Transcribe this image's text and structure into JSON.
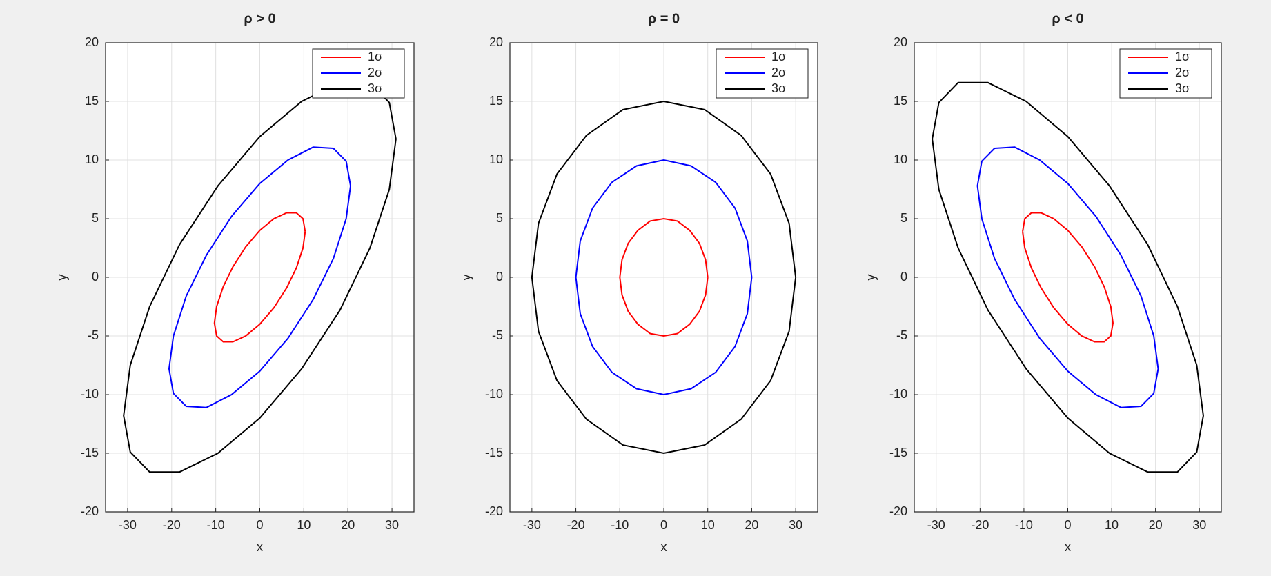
{
  "chart_data": [
    {
      "type": "line",
      "title": "ρ > 0",
      "xlabel": "x",
      "ylabel": "y",
      "xlim": [
        -35,
        35
      ],
      "ylim": [
        -20,
        20
      ],
      "xticks": [
        -30,
        -20,
        -10,
        0,
        10,
        20,
        30
      ],
      "yticks": [
        -20,
        -15,
        -10,
        -5,
        0,
        5,
        10,
        15,
        20
      ],
      "grid": true,
      "legend": "upper right",
      "series": [
        {
          "name": "1σ",
          "color": "#ff0000",
          "x": [
            10.3,
            9.8,
            8.3,
            6.1,
            3.2,
            0,
            -3.2,
            -6.1,
            -8.3,
            -9.8,
            -10.3,
            -9.8,
            -8.3,
            -6.1,
            -3.2,
            0,
            3.2,
            6.1,
            8.3,
            9.8,
            10.3
          ],
          "values": [
            3.9,
            5.0,
            5.5,
            5.5,
            5.0,
            4.0,
            2.6,
            0.9,
            -0.8,
            -2.5,
            -3.9,
            -5.0,
            -5.5,
            -5.5,
            -5.0,
            -4.0,
            -2.6,
            -0.9,
            0.8,
            2.5,
            3.9
          ]
        },
        {
          "name": "2σ",
          "color": "#0000ff",
          "x": [
            20.6,
            19.6,
            16.7,
            12.1,
            6.4,
            0,
            -6.4,
            -12.1,
            -16.7,
            -19.6,
            -20.6,
            -19.6,
            -16.7,
            -12.1,
            -6.4,
            0,
            6.4,
            12.1,
            16.7,
            19.6,
            20.6
          ],
          "values": [
            7.8,
            9.9,
            11.0,
            11.1,
            10.0,
            8.0,
            5.2,
            1.9,
            -1.6,
            -5.0,
            -7.8,
            -9.9,
            -11.0,
            -11.1,
            -10.0,
            -8.0,
            -5.2,
            -1.9,
            1.6,
            5.0,
            7.8
          ]
        },
        {
          "name": "3σ",
          "color": "#000000",
          "x": [
            30.9,
            29.4,
            25.0,
            18.2,
            9.5,
            0,
            -9.5,
            -18.2,
            -25.0,
            -29.4,
            -30.9,
            -29.4,
            -25.0,
            -18.2,
            -9.5,
            0,
            9.5,
            18.2,
            25.0,
            29.4,
            30.9
          ],
          "values": [
            11.8,
            14.9,
            16.6,
            16.6,
            15.0,
            12.0,
            7.8,
            2.8,
            -2.5,
            -7.5,
            -11.8,
            -14.9,
            -16.6,
            -16.6,
            -15.0,
            -12.0,
            -7.8,
            -2.8,
            2.5,
            7.5,
            11.8
          ]
        }
      ]
    },
    {
      "type": "line",
      "title": "ρ = 0",
      "xlabel": "x",
      "ylabel": "y",
      "xlim": [
        -35,
        35
      ],
      "ylim": [
        -20,
        20
      ],
      "xticks": [
        -30,
        -20,
        -10,
        0,
        10,
        20,
        30
      ],
      "yticks": [
        -20,
        -15,
        -10,
        -5,
        0,
        5,
        10,
        15,
        20
      ],
      "grid": true,
      "legend": "upper right",
      "series": [
        {
          "name": "1σ",
          "color": "#ff0000",
          "x": [
            10,
            9.5,
            8.1,
            5.9,
            3.1,
            0,
            -3.1,
            -5.9,
            -8.1,
            -9.5,
            -10,
            -9.5,
            -8.1,
            -5.9,
            -3.1,
            0,
            3.1,
            5.9,
            8.1,
            9.5,
            10
          ],
          "values": [
            0,
            1.5,
            2.9,
            4.0,
            4.8,
            5,
            4.8,
            4.0,
            2.9,
            1.5,
            0,
            -1.5,
            -2.9,
            -4.0,
            -4.8,
            -5,
            -4.8,
            -4.0,
            -2.9,
            -1.5,
            0
          ]
        },
        {
          "name": "2σ",
          "color": "#0000ff",
          "x": [
            20,
            19,
            16.2,
            11.8,
            6.2,
            0,
            -6.2,
            -11.8,
            -16.2,
            -19,
            -20,
            -19,
            -16.2,
            -11.8,
            -6.2,
            0,
            6.2,
            11.8,
            16.2,
            19,
            20
          ],
          "values": [
            0,
            3.1,
            5.9,
            8.1,
            9.5,
            10,
            9.5,
            8.1,
            5.9,
            3.1,
            0,
            -3.1,
            -5.9,
            -8.1,
            -9.5,
            -10,
            -9.5,
            -8.1,
            -5.9,
            -3.1,
            0
          ]
        },
        {
          "name": "3σ",
          "color": "#000000",
          "x": [
            30,
            28.5,
            24.3,
            17.6,
            9.3,
            0,
            -9.3,
            -17.6,
            -24.3,
            -28.5,
            -30,
            -28.5,
            -24.3,
            -17.6,
            -9.3,
            0,
            9.3,
            17.6,
            24.3,
            28.5,
            30
          ],
          "values": [
            0,
            4.6,
            8.8,
            12.1,
            14.3,
            15,
            14.3,
            12.1,
            8.8,
            4.6,
            0,
            -4.6,
            -8.8,
            -12.1,
            -14.3,
            -15,
            -14.3,
            -12.1,
            -8.8,
            -4.6,
            0
          ]
        }
      ]
    },
    {
      "type": "line",
      "title": "ρ < 0",
      "xlabel": "x",
      "ylabel": "y",
      "xlim": [
        -35,
        35
      ],
      "ylim": [
        -20,
        20
      ],
      "xticks": [
        -30,
        -20,
        -10,
        0,
        10,
        20,
        30
      ],
      "yticks": [
        -20,
        -15,
        -10,
        -5,
        0,
        5,
        10,
        15,
        20
      ],
      "grid": true,
      "legend": "upper right",
      "series": [
        {
          "name": "1σ",
          "color": "#ff0000",
          "x": [
            -10.3,
            -9.8,
            -8.3,
            -6.1,
            -3.2,
            0,
            3.2,
            6.1,
            8.3,
            9.8,
            10.3,
            9.8,
            8.3,
            6.1,
            3.2,
            0,
            -3.2,
            -6.1,
            -8.3,
            -9.8,
            -10.3
          ],
          "values": [
            3.9,
            5.0,
            5.5,
            5.5,
            5.0,
            4.0,
            2.6,
            0.9,
            -0.8,
            -2.5,
            -3.9,
            -5.0,
            -5.5,
            -5.5,
            -5.0,
            -4.0,
            -2.6,
            -0.9,
            0.8,
            2.5,
            3.9
          ]
        },
        {
          "name": "2σ",
          "color": "#0000ff",
          "x": [
            -20.6,
            -19.6,
            -16.7,
            -12.1,
            -6.4,
            0,
            6.4,
            12.1,
            16.7,
            19.6,
            20.6,
            19.6,
            16.7,
            12.1,
            6.4,
            0,
            -6.4,
            -12.1,
            -16.7,
            -19.6,
            -20.6
          ],
          "values": [
            7.8,
            9.9,
            11.0,
            11.1,
            10.0,
            8.0,
            5.2,
            1.9,
            -1.6,
            -5.0,
            -7.8,
            -9.9,
            -11.0,
            -11.1,
            -10.0,
            -8.0,
            -5.2,
            -1.9,
            1.6,
            5.0,
            7.8
          ]
        },
        {
          "name": "3σ",
          "color": "#000000",
          "x": [
            -30.9,
            -29.4,
            -25.0,
            -18.2,
            -9.5,
            0,
            9.5,
            18.2,
            25.0,
            29.4,
            30.9,
            29.4,
            25.0,
            18.2,
            9.5,
            0,
            -9.5,
            -18.2,
            -25.0,
            -29.4,
            -30.9
          ],
          "values": [
            11.8,
            14.9,
            16.6,
            16.6,
            15.0,
            12.0,
            7.8,
            2.8,
            -2.5,
            -7.5,
            -11.8,
            -14.9,
            -16.6,
            -16.6,
            -15.0,
            -12.0,
            -7.8,
            -2.8,
            2.5,
            7.5,
            11.8
          ]
        }
      ]
    }
  ]
}
